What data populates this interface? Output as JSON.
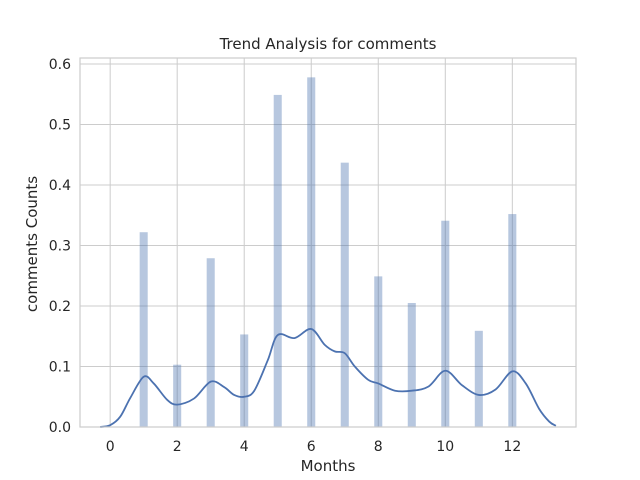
{
  "chart_data": {
    "type": "bar",
    "title": "Trend Analysis for comments",
    "xlabel": "Months",
    "ylabel": "comments Counts",
    "xlim": [
      -0.9,
      13.9
    ],
    "ylim": [
      0,
      0.61
    ],
    "xticks": [
      0,
      2,
      4,
      6,
      8,
      10,
      12
    ],
    "yticks": [
      0.0,
      0.1,
      0.2,
      0.3,
      0.4,
      0.5,
      0.6
    ],
    "ytick_labels": [
      "0.0",
      "0.1",
      "0.2",
      "0.3",
      "0.4",
      "0.5",
      "0.6"
    ],
    "grid": true,
    "bar_width": 0.24,
    "bars": {
      "x": [
        1,
        2,
        3,
        4,
        5,
        6,
        7,
        8,
        9,
        10,
        11,
        12
      ],
      "values": [
        0.322,
        0.103,
        0.279,
        0.153,
        0.549,
        0.578,
        0.437,
        0.249,
        0.205,
        0.341,
        0.159,
        0.352
      ]
    },
    "density": {
      "x": [
        -0.3,
        0.0,
        0.3,
        0.6,
        1.0,
        1.3,
        1.7,
        2.0,
        2.5,
        3.0,
        3.4,
        3.7,
        4.0,
        4.3,
        4.7,
        5.0,
        5.5,
        6.0,
        6.4,
        6.7,
        7.0,
        7.3,
        7.7,
        8.0,
        8.5,
        9.0,
        9.5,
        10.0,
        10.5,
        11.0,
        11.5,
        12.0,
        12.4,
        12.8,
        13.1,
        13.3
      ],
      "y": [
        0.0,
        0.003,
        0.017,
        0.048,
        0.083,
        0.072,
        0.045,
        0.037,
        0.047,
        0.075,
        0.066,
        0.053,
        0.05,
        0.06,
        0.11,
        0.152,
        0.147,
        0.162,
        0.136,
        0.125,
        0.122,
        0.1,
        0.078,
        0.072,
        0.06,
        0.06,
        0.067,
        0.093,
        0.069,
        0.053,
        0.062,
        0.092,
        0.072,
        0.03,
        0.009,
        0.002
      ]
    },
    "colors": {
      "bar": "#4c72b0",
      "line": "#4c72b0",
      "grid": "#cccccc",
      "text": "#262626"
    }
  }
}
